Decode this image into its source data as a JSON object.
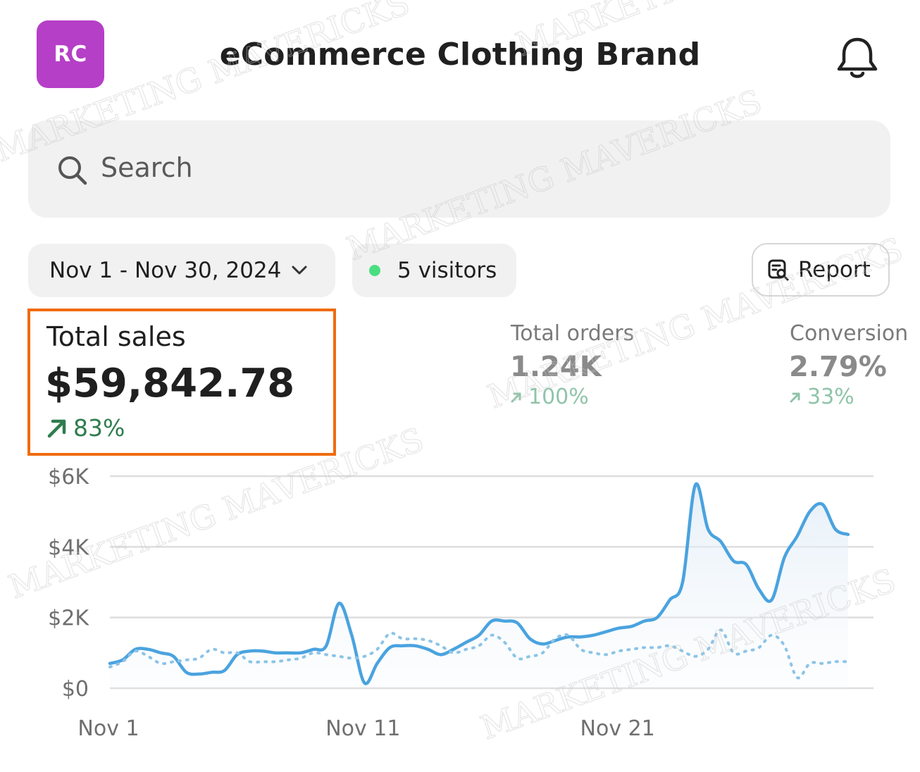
{
  "header": {
    "avatar_initials": "RC",
    "title": "eCommerce Clothing Brand",
    "notification_icon": "bell-icon"
  },
  "search": {
    "placeholder": "Search",
    "icon": "search-icon"
  },
  "filters": {
    "date_range": "Nov 1 - Nov 30, 2024",
    "visitors": "5 visitors",
    "visitors_dot_color": "#4ade80",
    "report_label": "Report"
  },
  "metrics": {
    "total_sales": {
      "label": "Total sales",
      "value": "$59,842.78",
      "delta": "83%"
    },
    "total_orders": {
      "label": "Total orders",
      "value": "1.24K",
      "delta": "100%"
    },
    "conversion": {
      "label": "Conversion",
      "value": "2.79%",
      "delta": "33%"
    }
  },
  "colors": {
    "accent_line": "#4aa3df",
    "highlight_border": "#f06b10",
    "positive": "#2e7d4f"
  },
  "watermark": "MARKETING MAVERICKS",
  "chart_data": {
    "type": "line",
    "x": [
      1,
      1.5,
      2,
      2.5,
      3,
      3.5,
      4,
      4.5,
      5,
      5.5,
      6,
      6.5,
      7,
      7.5,
      8,
      8.5,
      9,
      9.5,
      10,
      10.5,
      11,
      11.5,
      12,
      12.5,
      13,
      13.5,
      14,
      14.5,
      15,
      15.5,
      16,
      16.5,
      17,
      17.5,
      18,
      18.5,
      19,
      19.5,
      20,
      20.5,
      21,
      21.5,
      22,
      22.5,
      23,
      23.5,
      24,
      24.5,
      25,
      25.5,
      26,
      26.5,
      27,
      27.5,
      28,
      28.5,
      29,
      29.5,
      30
    ],
    "series": [
      {
        "values": [
          700,
          800,
          1100,
          1100,
          1000,
          900,
          450,
          400,
          450,
          500,
          950,
          1050,
          1050,
          1000,
          1000,
          1000,
          1100,
          1200,
          2400,
          1500,
          150,
          700,
          1150,
          1200,
          1200,
          1100,
          950,
          1100,
          1300,
          1500,
          1900,
          1900,
          1850,
          1400,
          1250,
          1350,
          1450,
          1450,
          1500,
          1600,
          1700,
          1750,
          1900,
          2000,
          2500,
          3000,
          5750,
          4500,
          4150,
          3600,
          3500,
          2800,
          2500,
          3700,
          4300,
          5000,
          5200,
          4500,
          4350
        ],
        "style": "solid"
      },
      {
        "values": [
          600,
          750,
          1050,
          900,
          700,
          750,
          800,
          850,
          1100,
          1000,
          1000,
          750,
          750,
          750,
          800,
          850,
          1000,
          950,
          900,
          850,
          900,
          1100,
          1550,
          1400,
          1400,
          1350,
          1200,
          1000,
          1100,
          1200,
          1500,
          1300,
          850,
          900,
          1000,
          1400,
          1500,
          1100,
          1000,
          950,
          1050,
          1100,
          1150,
          1150,
          1200,
          1050,
          900,
          1100,
          1650,
          1000,
          1050,
          1150,
          1500,
          1200,
          300,
          700,
          700,
          750,
          750
        ],
        "style": "dotted"
      }
    ],
    "y_ticks": [
      "$0",
      "$2K",
      "$4K",
      "$6K"
    ],
    "y_tick_values": [
      0,
      2000,
      4000,
      6000
    ],
    "x_ticks": [
      "Nov 1",
      "Nov 11",
      "Nov 21"
    ],
    "x_tick_values": [
      1,
      11,
      21
    ],
    "xlim": [
      1,
      31
    ],
    "ylim": [
      0,
      6000
    ],
    "grid": true
  }
}
